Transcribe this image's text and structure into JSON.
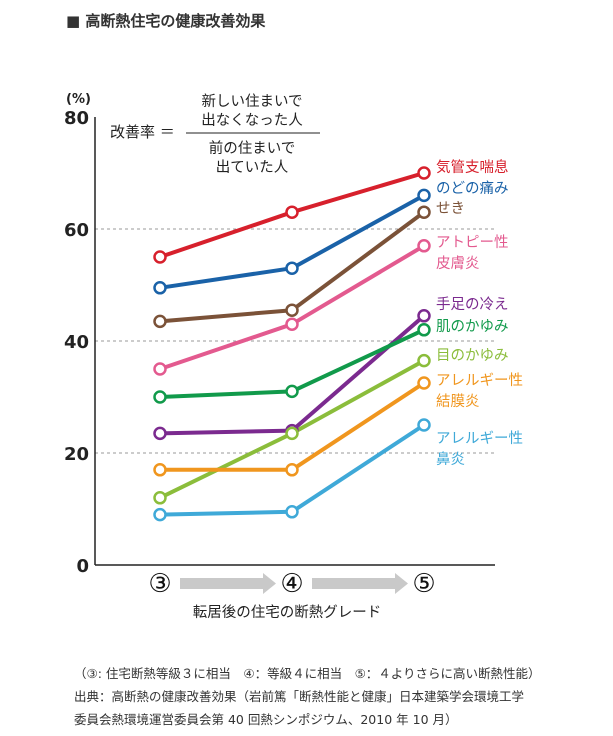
{
  "title": "■ 高断熱住宅の健康改善効果",
  "formula": {
    "lhs": "改善率 ＝",
    "numerator": [
      "新しい住まいで",
      "出なくなった人"
    ],
    "denominator": [
      "前の住まいで",
      "出ていた人"
    ]
  },
  "chart_data": {
    "type": "line",
    "x": [
      "③",
      "④",
      "⑤"
    ],
    "xlabel": "転居後の住宅の断熱グレード",
    "ylabel": "(%)",
    "ylim": [
      0,
      80
    ],
    "yticks": [
      0,
      20,
      40,
      60,
      80
    ],
    "grid": "dashed at 20, 40, 60",
    "series": [
      {
        "name": "気管支喘息",
        "values": [
          55,
          63,
          70
        ],
        "color": "#d7202c"
      },
      {
        "name": "のどの痛み",
        "values": [
          49.5,
          53,
          66
        ],
        "color": "#1a62a8"
      },
      {
        "name": "せき",
        "values": [
          43.5,
          45.5,
          63
        ],
        "color": "#7b5238"
      },
      {
        "name": "アトピー性皮膚炎",
        "values": [
          35,
          43,
          57
        ],
        "color": "#e35a8f"
      },
      {
        "name": "手足の冷え",
        "values": [
          23.5,
          24,
          44.5
        ],
        "color": "#7b2a8f"
      },
      {
        "name": "肌のかゆみ",
        "values": [
          30,
          31,
          42
        ],
        "color": "#119a4b"
      },
      {
        "name": "目のかゆみ",
        "values": [
          12,
          23.5,
          36.5
        ],
        "color": "#8bbd3b"
      },
      {
        "name": "アレルギー性結膜炎",
        "values": [
          17,
          17,
          32.5
        ],
        "color": "#f0961e"
      },
      {
        "name": "アレルギー性鼻炎",
        "values": [
          9,
          9.5,
          25
        ],
        "color": "#3fa9d8"
      }
    ],
    "legend": [
      {
        "lines": [
          "気管支喘息"
        ],
        "color": "#d7202c"
      },
      {
        "lines": [
          "のどの痛み"
        ],
        "color": "#1a62a8"
      },
      {
        "lines": [
          "せき"
        ],
        "color": "#7b5238"
      },
      {
        "lines": [
          "アトピー性",
          "皮膚炎"
        ],
        "color": "#e35a8f"
      },
      {
        "lines": [
          "手足の冷え"
        ],
        "color": "#7b2a8f"
      },
      {
        "lines": [
          "肌のかゆみ"
        ],
        "color": "#119a4b"
      },
      {
        "lines": [
          "目のかゆみ"
        ],
        "color": "#8bbd3b"
      },
      {
        "lines": [
          "アレルギー性",
          "結膜炎"
        ],
        "color": "#f0961e"
      },
      {
        "lines": [
          "アレルギー性",
          "鼻炎"
        ],
        "color": "#3fa9d8"
      }
    ]
  },
  "notes": [
    "（③: 住宅断熱等級３に相当　④：等級４に相当　⑤：４よりさらに高い断熱性能）",
    "出典：高断熱の健康改善効果（岩前篤「断熱性能と健康」日本建築学会環境工学",
    "委員会熱環境運営委員会第 40 回熱シンポジウム、2010 年 10 月）"
  ]
}
